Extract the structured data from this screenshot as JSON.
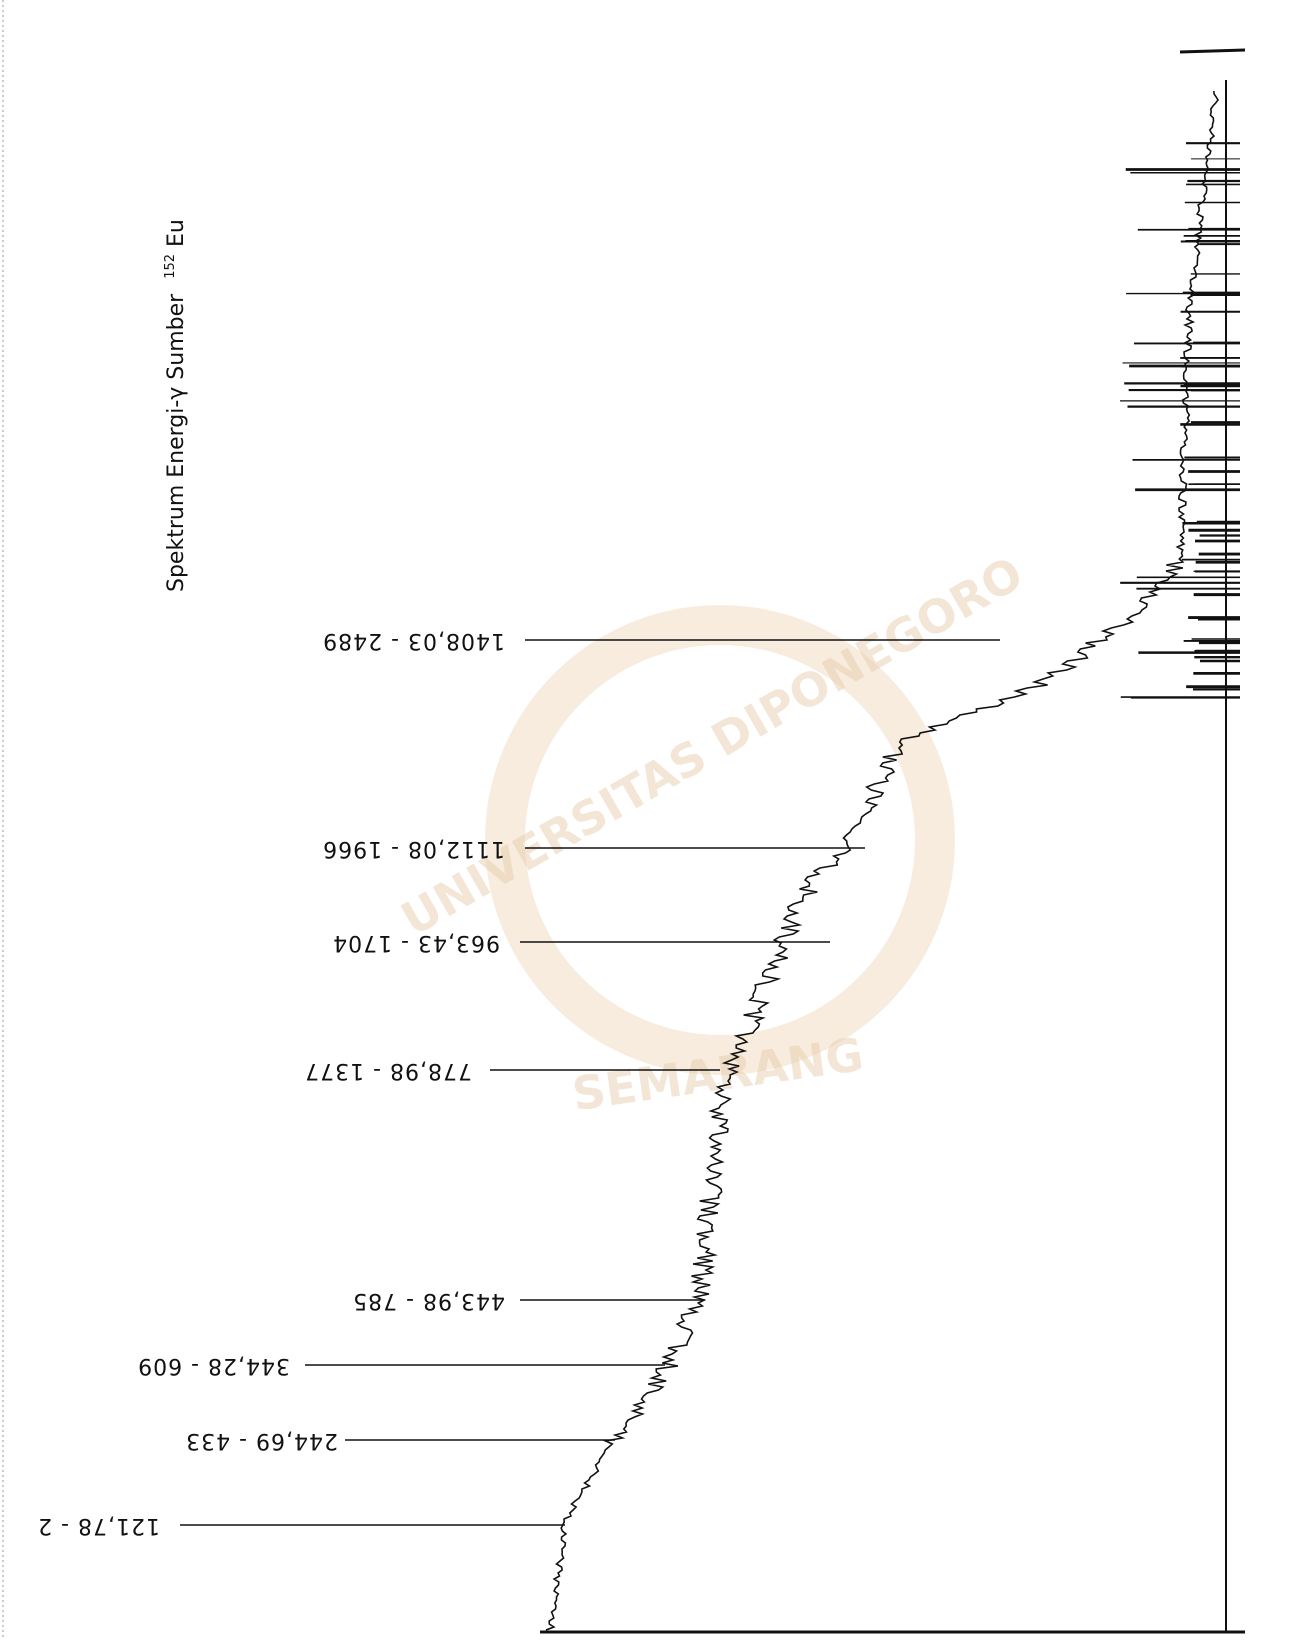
{
  "title": {
    "text": "Spektrum Energi-γ Sumber",
    "isotope_mass": "152",
    "element": "Eu"
  },
  "peaks": [
    {
      "label": "1408,03 - 2489"
    },
    {
      "label": "1112,08 - 1966"
    },
    {
      "label": "963,43 - 1704"
    },
    {
      "label": "778,98 - 1377"
    },
    {
      "label": "443,98 - 785"
    },
    {
      "label": "344,28 - 609"
    },
    {
      "label": "244,69 - 433"
    },
    {
      "label": "121,78 - 2"
    }
  ],
  "watermark": {
    "line1": "UNIVERSITAS DIPONEGORO",
    "line2": "SEMARANG"
  }
}
